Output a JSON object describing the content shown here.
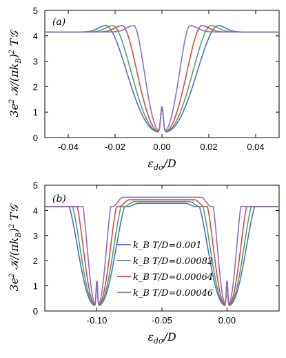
{
  "chart_data": [
    {
      "panel": "(a)",
      "type": "line",
      "xlabel": "ε_dσ/D",
      "ylabel": "3e² 𝒦/(πk_B)² T𝒢",
      "xlim": [
        -0.05,
        0.05
      ],
      "ylim": [
        0,
        5
      ],
      "xticks": [
        "-0.04",
        "-0.02",
        "0.00",
        "0.02",
        "0.04"
      ],
      "xtick_values": [
        -0.04,
        -0.02,
        0.0,
        0.02,
        0.04
      ],
      "yticks": [
        "0",
        "1",
        "2",
        "3",
        "4",
        "5"
      ],
      "ytick_values": [
        0,
        1,
        2,
        3,
        4,
        5
      ],
      "centers": [
        0.0
      ],
      "series": [
        {
          "color": "#4f6fbf",
          "half_width": 0.024
        },
        {
          "color": "#4fa06a",
          "half_width": 0.021
        },
        {
          "color": "#d24a45",
          "half_width": 0.017
        },
        {
          "color": "#8a6fbf",
          "half_width": 0.012
        }
      ],
      "plateau": 4.15,
      "shoulder_peak": 4.4,
      "dip_min": 0.2,
      "spike_height": 1.2
    },
    {
      "panel": "(b)",
      "type": "line",
      "xlabel": "ε_dσ/D",
      "ylabel": "3e² 𝒦/(πk_B)² T𝒢",
      "xlim": [
        -0.14,
        0.04
      ],
      "ylim": [
        0,
        5
      ],
      "xticks": [
        "-0.10",
        "-0.05",
        "0.00"
      ],
      "xtick_values": [
        -0.1,
        -0.05,
        0.0
      ],
      "yticks": [
        "0",
        "1",
        "2",
        "3",
        "4",
        "5"
      ],
      "ytick_values": [
        0,
        1,
        2,
        3,
        4,
        5
      ],
      "centers": [
        -0.1,
        0.0
      ],
      "series": [
        {
          "name": "k_B T/D=0.001",
          "color": "#4f6fbf",
          "half_width": 0.024,
          "mid_level": 4.28
        },
        {
          "name": "k_B T/D=0.00082",
          "color": "#4fa06a",
          "half_width": 0.021,
          "mid_level": 4.35
        },
        {
          "name": "k_B T/D=0.00064",
          "color": "#d24a45",
          "half_width": 0.017,
          "mid_level": 4.42
        },
        {
          "name": "k_B T/D=0.00046",
          "color": "#8a6fbf",
          "half_width": 0.012,
          "mid_level": 4.52
        }
      ],
      "plateau": 4.15,
      "shoulder_peak": 4.4,
      "dip_min": 0.2,
      "spike_height": 1.2,
      "legend_position": "center"
    }
  ]
}
